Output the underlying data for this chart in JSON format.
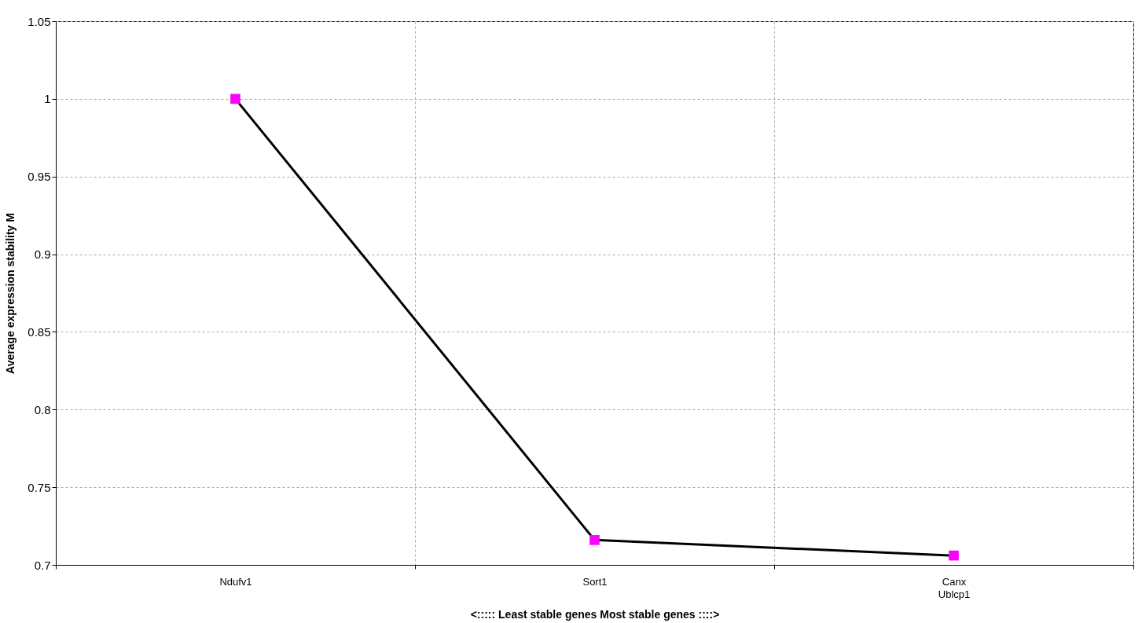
{
  "chart_data": {
    "type": "line",
    "categories": [
      "Ndufv1",
      "Sort1",
      "Canx\nUblcp1"
    ],
    "series": [
      {
        "color": "#000000",
        "colors": [
          "#ff00ff",
          "#ff00ff",
          "#ff00ff"
        ],
        "values": [
          1.0,
          0.716,
          0.706
        ]
      }
    ],
    "xlabel": "<:::::  Least stable genes              Most stable genes ::::>",
    "ylabel": "Average expression stability M",
    "ylim": [
      0.7,
      1.05
    ],
    "yticks": [
      0.7,
      0.75,
      0.8,
      0.85,
      0.9,
      0.95,
      1,
      1.05
    ],
    "grid": true,
    "marker": "square",
    "line_style": "solid"
  }
}
